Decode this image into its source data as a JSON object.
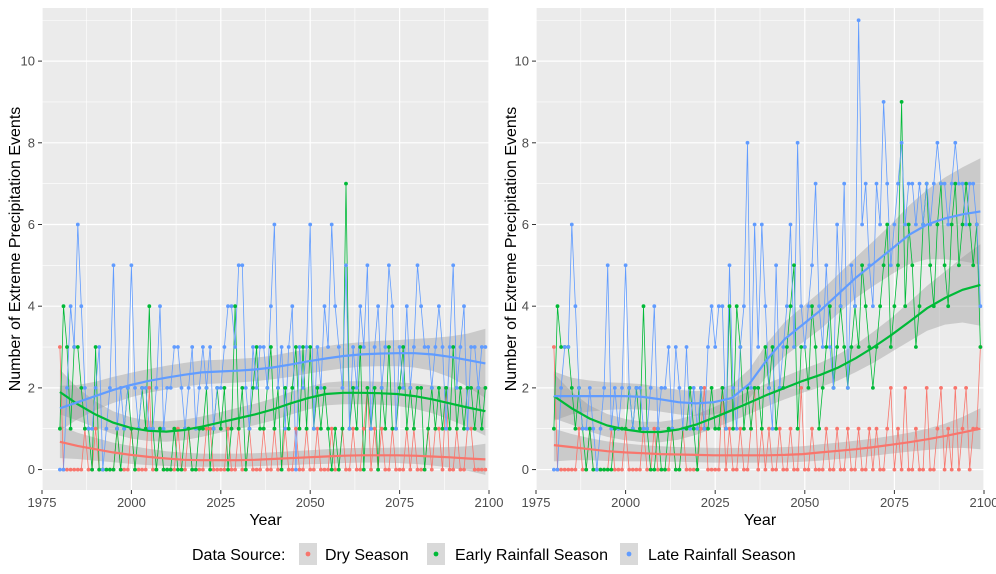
{
  "chart_data": [
    {
      "type": "line",
      "panel": "left",
      "title": "",
      "xlabel": "Year",
      "ylabel": "Number of Extreme Precipitation Events",
      "xlim": [
        1975,
        2100
      ],
      "ylim": [
        -0.5,
        11.3
      ],
      "xticks": [
        1975,
        2000,
        2025,
        2050,
        2075,
        2100
      ],
      "yticks": [
        0,
        2,
        4,
        6,
        8,
        10
      ],
      "grid": true,
      "x_start": 1980,
      "series": [
        {
          "name": "Dry Season",
          "color": "#F8766D",
          "values": [
            3,
            0,
            0,
            0,
            0,
            0,
            0,
            1,
            0,
            0,
            1,
            0,
            0,
            0,
            0,
            0,
            1,
            0,
            0,
            0,
            1,
            0,
            0,
            0,
            0,
            2,
            0,
            0,
            1,
            0,
            0,
            0,
            0,
            1,
            0,
            0,
            1,
            0,
            0,
            0,
            0,
            1,
            1,
            0,
            0,
            0,
            0,
            1,
            0,
            0,
            1,
            0,
            0,
            1,
            0,
            0,
            0,
            1,
            0,
            0,
            1,
            0,
            0,
            1,
            0,
            0,
            1,
            0,
            0,
            1,
            0,
            0,
            1,
            0,
            0,
            0,
            1,
            0,
            0,
            1,
            0,
            0,
            1,
            0,
            0,
            1,
            2,
            0,
            1,
            0,
            1,
            0,
            0,
            1,
            0,
            0,
            0,
            1,
            0,
            1,
            0,
            0,
            0,
            1,
            0,
            1,
            1,
            0,
            2,
            0,
            0,
            1,
            0,
            0,
            1,
            1,
            0,
            0,
            0,
            0
          ],
          "smooth": [
            0.68,
            0.58,
            0.5,
            0.42,
            0.36,
            0.31,
            0.27,
            0.24,
            0.23,
            0.23,
            0.23,
            0.24,
            0.26,
            0.28,
            0.3,
            0.32,
            0.34,
            0.35,
            0.35,
            0.35,
            0.34,
            0.32,
            0.3,
            0.27,
            0.25
          ],
          "band": [
            0.4,
            0.32,
            0.28,
            0.24,
            0.22,
            0.2,
            0.18,
            0.17,
            0.16,
            0.16,
            0.16,
            0.16,
            0.16,
            0.17,
            0.17,
            0.18,
            0.18,
            0.18,
            0.18,
            0.19,
            0.2,
            0.22,
            0.25,
            0.3,
            0.38
          ]
        },
        {
          "name": "Early Rainfall Season",
          "color": "#00BA38",
          "values": [
            1,
            4,
            3,
            1,
            3,
            3,
            2,
            1,
            1,
            0,
            3,
            0,
            0,
            0,
            0,
            0,
            1,
            0,
            1,
            2,
            1,
            0,
            1,
            2,
            1,
            4,
            1,
            0,
            1,
            0,
            0,
            0,
            1,
            0,
            0,
            1,
            1,
            0,
            0,
            1,
            1,
            2,
            0,
            1,
            2,
            1,
            2,
            0,
            1,
            4,
            1,
            2,
            0,
            1,
            2,
            3,
            1,
            1,
            2,
            3,
            1,
            2,
            0,
            2,
            1,
            2,
            3,
            1,
            3,
            1,
            3,
            1,
            2,
            1,
            2,
            1,
            0,
            1,
            0,
            1,
            7,
            1,
            2,
            1,
            3,
            0,
            2,
            1,
            2,
            0,
            2,
            1,
            3,
            1,
            1,
            2,
            3,
            1,
            2,
            1,
            2,
            2,
            0,
            1,
            2,
            1,
            2,
            1,
            2,
            1,
            3,
            1,
            2,
            1,
            2,
            2,
            1,
            2,
            1,
            2
          ],
          "smooth": [
            1.9,
            1.6,
            1.35,
            1.15,
            1.02,
            0.95,
            0.93,
            0.97,
            1.05,
            1.15,
            1.25,
            1.35,
            1.47,
            1.62,
            1.75,
            1.85,
            1.88,
            1.88,
            1.87,
            1.85,
            1.8,
            1.72,
            1.62,
            1.52,
            1.43
          ],
          "band": [
            0.55,
            0.4,
            0.32,
            0.28,
            0.26,
            0.25,
            0.25,
            0.25,
            0.25,
            0.25,
            0.26,
            0.26,
            0.27,
            0.28,
            0.28,
            0.28,
            0.28,
            0.28,
            0.28,
            0.29,
            0.31,
            0.34,
            0.4,
            0.48,
            0.6
          ]
        },
        {
          "name": "Late Rainfall Season",
          "color": "#619CFF",
          "values": [
            0,
            0,
            2,
            4,
            3,
            6,
            4,
            2,
            1,
            1,
            2,
            3,
            0,
            1,
            2,
            5,
            1,
            2,
            1,
            2,
            5,
            2,
            1,
            2,
            2,
            1,
            1,
            2,
            4,
            1,
            2,
            2,
            3,
            3,
            2,
            1,
            2,
            3,
            1,
            2,
            3,
            2,
            3,
            1,
            2,
            2,
            3,
            4,
            4,
            3,
            5,
            5,
            2,
            1,
            3,
            2,
            3,
            3,
            2,
            4,
            6,
            2,
            3,
            1,
            3,
            4,
            0,
            3,
            2,
            3,
            6,
            1,
            3,
            2,
            4,
            3,
            6,
            4,
            3,
            2,
            5,
            1,
            3,
            2,
            4,
            3,
            5,
            1,
            3,
            4,
            2,
            3,
            5,
            4,
            1,
            3,
            2,
            4,
            2,
            3,
            5,
            4,
            3,
            3,
            2,
            3,
            4,
            3,
            1,
            3,
            5,
            2,
            3,
            4,
            1,
            3,
            3,
            2,
            3,
            3
          ],
          "smooth": [
            1.5,
            1.65,
            1.8,
            1.95,
            2.07,
            2.17,
            2.25,
            2.32,
            2.38,
            2.4,
            2.42,
            2.45,
            2.5,
            2.57,
            2.65,
            2.72,
            2.78,
            2.82,
            2.84,
            2.85,
            2.85,
            2.82,
            2.76,
            2.68,
            2.6
          ],
          "band": [
            0.55,
            0.42,
            0.35,
            0.32,
            0.3,
            0.29,
            0.29,
            0.29,
            0.29,
            0.29,
            0.29,
            0.29,
            0.29,
            0.3,
            0.3,
            0.3,
            0.3,
            0.3,
            0.31,
            0.32,
            0.35,
            0.4,
            0.5,
            0.65,
            0.85
          ]
        }
      ]
    },
    {
      "type": "line",
      "panel": "right",
      "title": "",
      "xlabel": "Year",
      "ylabel": "Number of Extreme Precipitation Events",
      "xlim": [
        1975,
        2100
      ],
      "ylim": [
        -0.5,
        11.3
      ],
      "xticks": [
        1975,
        2000,
        2025,
        2050,
        2075,
        2100
      ],
      "yticks": [
        0,
        2,
        4,
        6,
        8,
        10
      ],
      "grid": true,
      "x_start": 1980,
      "series": [
        {
          "name": "Dry Season",
          "color": "#F8766D",
          "values": [
            3,
            0,
            0,
            0,
            0,
            0,
            0,
            1,
            0,
            0,
            1,
            0,
            0,
            0,
            0,
            0,
            1,
            0,
            0,
            0,
            1,
            0,
            0,
            0,
            0,
            1,
            0,
            0,
            1,
            0,
            0,
            0,
            0,
            1,
            0,
            0,
            1,
            0,
            0,
            0,
            0,
            1,
            2,
            0,
            0,
            0,
            0,
            2,
            0,
            1,
            0,
            0,
            1,
            0,
            0,
            1,
            2,
            0,
            1,
            0,
            1,
            0,
            0,
            1,
            0,
            0,
            1,
            0,
            0,
            2,
            0,
            0,
            1,
            0,
            0,
            0,
            1,
            0,
            0,
            1,
            0,
            0,
            1,
            0,
            0,
            1,
            0,
            0,
            1,
            0,
            1,
            0,
            0,
            1,
            2,
            0,
            1,
            0,
            2,
            0,
            0,
            1,
            0,
            0,
            2,
            0,
            0,
            1,
            2,
            0,
            1,
            0,
            2,
            0,
            1,
            2,
            0,
            1,
            1,
            3
          ],
          "smooth": [
            0.6,
            0.55,
            0.5,
            0.45,
            0.42,
            0.4,
            0.38,
            0.37,
            0.36,
            0.35,
            0.35,
            0.35,
            0.35,
            0.36,
            0.38,
            0.42,
            0.46,
            0.5,
            0.55,
            0.61,
            0.67,
            0.74,
            0.82,
            0.91,
            1.0
          ],
          "band": [
            0.4,
            0.32,
            0.27,
            0.24,
            0.22,
            0.2,
            0.19,
            0.18,
            0.18,
            0.18,
            0.18,
            0.18,
            0.18,
            0.19,
            0.19,
            0.2,
            0.2,
            0.21,
            0.21,
            0.22,
            0.23,
            0.26,
            0.3,
            0.38,
            0.5
          ]
        },
        {
          "name": "Early Rainfall Season",
          "color": "#00BA38",
          "values": [
            1,
            4,
            3,
            3,
            3,
            2,
            1,
            2,
            1,
            0,
            1,
            0,
            0,
            0,
            0,
            0,
            0,
            1,
            1,
            1,
            1,
            2,
            1,
            2,
            1,
            4,
            1,
            0,
            0,
            1,
            0,
            0,
            1,
            1,
            0,
            0,
            1,
            1,
            2,
            1,
            0,
            2,
            1,
            1,
            2,
            1,
            1,
            2,
            1,
            4,
            1,
            4,
            3,
            1,
            2,
            1,
            2,
            2,
            1,
            3,
            2,
            3,
            1,
            2,
            2,
            3,
            4,
            5,
            1,
            3,
            3,
            2,
            4,
            3,
            1,
            2,
            3,
            4,
            2,
            3,
            4,
            3,
            2,
            3,
            4,
            3,
            5,
            4,
            3,
            2,
            3,
            4,
            5,
            6,
            3,
            4,
            5,
            9,
            4,
            6,
            5,
            3,
            4,
            6,
            7,
            5,
            4,
            6,
            7,
            5,
            4,
            6,
            7,
            5,
            6,
            7,
            6,
            5,
            6,
            3
          ],
          "smooth": [
            1.8,
            1.5,
            1.25,
            1.08,
            0.98,
            0.92,
            0.92,
            0.98,
            1.1,
            1.27,
            1.45,
            1.64,
            1.83,
            2.0,
            2.17,
            2.32,
            2.5,
            2.73,
            3.0,
            3.3,
            3.62,
            3.95,
            4.2,
            4.4,
            4.52
          ],
          "band": [
            0.55,
            0.4,
            0.32,
            0.28,
            0.26,
            0.25,
            0.25,
            0.25,
            0.25,
            0.26,
            0.27,
            0.28,
            0.28,
            0.28,
            0.29,
            0.3,
            0.32,
            0.34,
            0.38,
            0.42,
            0.48,
            0.55,
            0.65,
            0.8,
            1.0
          ]
        },
        {
          "name": "Late Rainfall Season",
          "color": "#619CFF",
          "values": [
            0,
            0,
            2,
            3,
            3,
            6,
            4,
            2,
            1,
            1,
            2,
            1,
            0,
            1,
            2,
            5,
            1,
            2,
            1,
            2,
            5,
            2,
            1,
            2,
            2,
            1,
            1,
            2,
            4,
            1,
            2,
            2,
            3,
            1,
            3,
            2,
            1,
            3,
            1,
            2,
            1,
            2,
            1,
            3,
            4,
            3,
            4,
            4,
            1,
            5,
            2,
            1,
            3,
            4,
            8,
            2,
            6,
            3,
            6,
            4,
            2,
            1,
            5,
            2,
            3,
            4,
            6,
            3,
            8,
            4,
            3,
            4,
            5,
            7,
            4,
            3,
            5,
            3,
            2,
            6,
            4,
            7,
            2,
            5,
            4,
            11,
            6,
            7,
            5,
            4,
            7,
            6,
            9,
            7,
            5,
            6,
            7,
            8,
            6,
            7,
            7,
            6,
            7,
            6,
            7,
            6,
            7,
            8,
            7,
            7,
            6,
            7,
            8,
            7,
            7,
            6,
            7,
            7,
            6,
            4
          ],
          "smooth": [
            1.8,
            1.8,
            1.8,
            1.8,
            1.8,
            1.78,
            1.72,
            1.65,
            1.62,
            1.65,
            1.75,
            2.1,
            2.7,
            3.2,
            3.55,
            3.9,
            4.3,
            4.7,
            5.05,
            5.4,
            5.75,
            6.0,
            6.15,
            6.25,
            6.32
          ],
          "band": [
            0.6,
            0.45,
            0.38,
            0.34,
            0.32,
            0.31,
            0.3,
            0.3,
            0.3,
            0.3,
            0.32,
            0.36,
            0.4,
            0.42,
            0.44,
            0.46,
            0.48,
            0.5,
            0.55,
            0.62,
            0.72,
            0.85,
            1.0,
            1.15,
            1.3
          ]
        }
      ]
    }
  ],
  "legend": {
    "title": "Data Source:",
    "position": "bottom",
    "items": [
      {
        "label": "Dry Season",
        "color": "#F8766D"
      },
      {
        "label": "Early Rainfall Season",
        "color": "#00BA38"
      },
      {
        "label": "Late Rainfall Season",
        "color": "#619CFF"
      }
    ]
  }
}
